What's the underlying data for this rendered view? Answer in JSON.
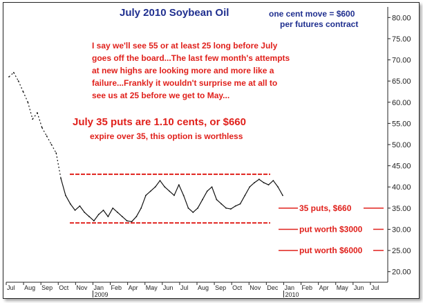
{
  "chart_data": {
    "type": "line",
    "title": "July 2010 Soybean Oil",
    "subtitle_lines": [
      "one cent move = $600",
      "per futures contract"
    ],
    "commentary_lines": [
      "I say we'll see 55 or at least 25 long before July",
      "goes off the board...The last few month's attempts",
      "at new highs are looking more and more like a",
      "failure...Frankly it wouldn't surprise me at all to",
      "see us at 25 before we get to May..."
    ],
    "put_headline": "July 35 puts are 1.10 cents, or $660",
    "put_subline": "expire over 35, this option is worthless",
    "ylim": [
      17.5,
      82.5
    ],
    "y_ticks": [
      "20.00",
      "25.00",
      "30.00",
      "35.00",
      "40.00",
      "45.00",
      "50.00",
      "55.00",
      "60.00",
      "65.00",
      "70.00",
      "75.00",
      "80.00"
    ],
    "x_month_labels": [
      "Jul",
      "Aug",
      "Sep",
      "Oct",
      "Nov",
      "Jan",
      "Feb",
      "Apr",
      "May",
      "Jun",
      "Jul",
      "Aug",
      "Sep",
      "Oct",
      "Nov",
      "Dec",
      "Jan",
      "Feb",
      "Apr",
      "May",
      "Jun",
      "Jul"
    ],
    "x_year_labels": [
      "2009",
      "2010"
    ],
    "reference_lines": [
      {
        "label": "",
        "value": 43.0
      },
      {
        "label": "35 puts, $660",
        "value": 35.0
      },
      {
        "label": "",
        "value": 31.5
      },
      {
        "label": "put worth $3000",
        "value": 30.0
      },
      {
        "label": "put worth $6000",
        "value": 25.0
      }
    ],
    "series": [
      {
        "values": [
          [
            0,
            66.0
          ],
          [
            1,
            67.0
          ],
          [
            2,
            65.0
          ],
          [
            3,
            62.5
          ],
          [
            4,
            60.0
          ],
          [
            5,
            56.0
          ],
          [
            6,
            57.5
          ],
          [
            7,
            54.0
          ],
          [
            8,
            52.0
          ],
          [
            9,
            50.0
          ],
          [
            10,
            48.0
          ],
          [
            11,
            42.0
          ],
          [
            12,
            38.0
          ],
          [
            13,
            36.0
          ],
          [
            14,
            34.5
          ],
          [
            15,
            35.5
          ],
          [
            16,
            34.0
          ],
          [
            17,
            33.0
          ],
          [
            18,
            32.0
          ],
          [
            19,
            33.5
          ],
          [
            20,
            34.5
          ],
          [
            21,
            33.0
          ],
          [
            22,
            35.0
          ],
          [
            23,
            34.0
          ],
          [
            24,
            33.0
          ],
          [
            25,
            32.0
          ],
          [
            26,
            31.8
          ],
          [
            27,
            33.0
          ],
          [
            28,
            35.0
          ],
          [
            29,
            38.0
          ],
          [
            30,
            39.0
          ],
          [
            31,
            40.0
          ],
          [
            32,
            41.5
          ],
          [
            33,
            40.0
          ],
          [
            34,
            39.0
          ],
          [
            35,
            38.0
          ],
          [
            36,
            40.5
          ],
          [
            37,
            38.0
          ],
          [
            38,
            35.0
          ],
          [
            39,
            34.0
          ],
          [
            40,
            35.0
          ],
          [
            41,
            37.0
          ],
          [
            42,
            39.0
          ],
          [
            43,
            40.0
          ],
          [
            44,
            37.0
          ],
          [
            45,
            36.0
          ],
          [
            46,
            35.0
          ],
          [
            47,
            34.8
          ],
          [
            48,
            35.5
          ],
          [
            49,
            36.0
          ],
          [
            50,
            38.0
          ],
          [
            51,
            40.0
          ],
          [
            52,
            41.0
          ],
          [
            53,
            41.8
          ],
          [
            54,
            41.0
          ],
          [
            55,
            40.5
          ],
          [
            56,
            41.5
          ],
          [
            57,
            40.0
          ],
          [
            58,
            38.0
          ]
        ]
      }
    ]
  }
}
